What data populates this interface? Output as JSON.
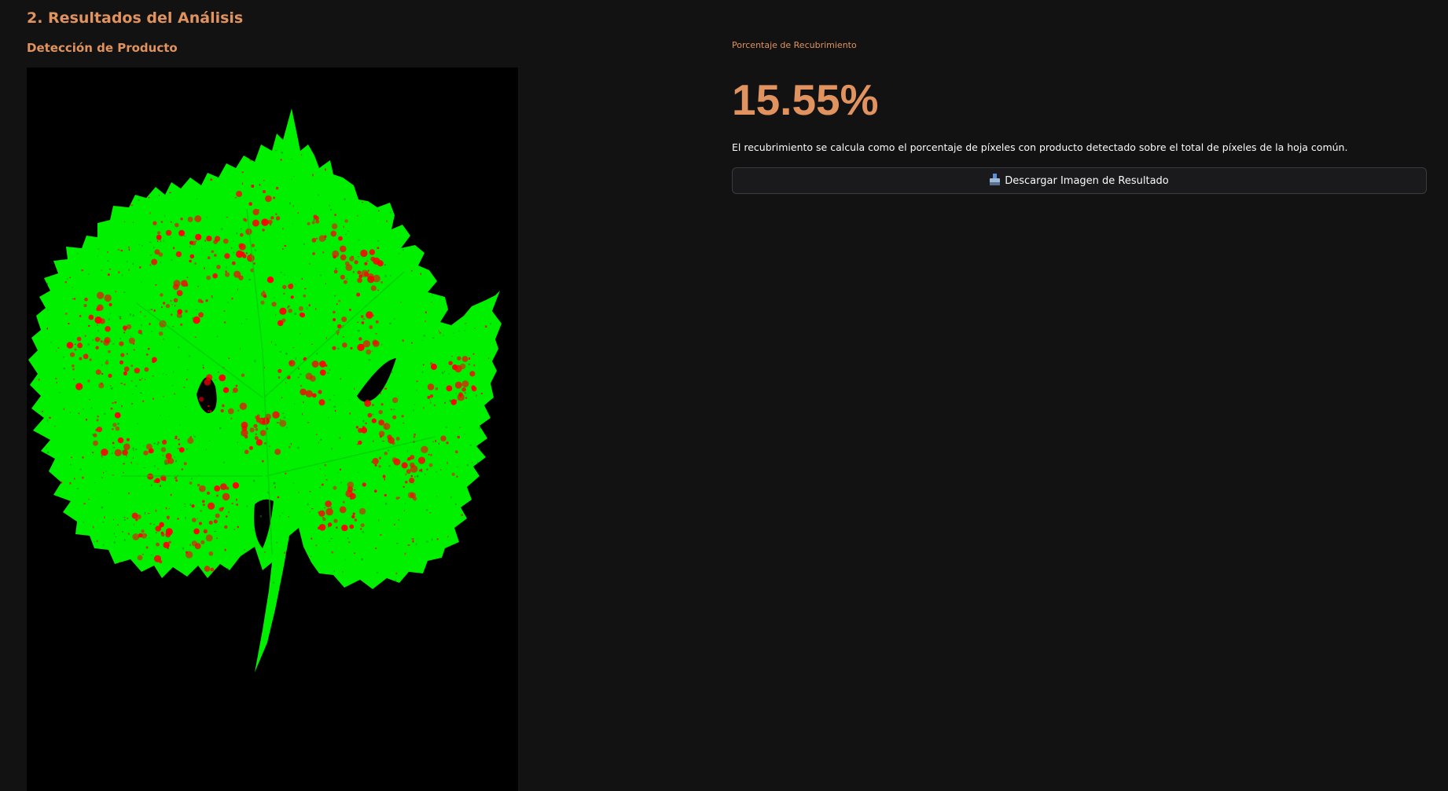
{
  "section": {
    "title": "2. Resultados del Análisis"
  },
  "detection": {
    "subtitle": "Detección de Producto",
    "image_icon": "leaf-detection-image",
    "colors": {
      "leaf": "#00ff00",
      "product": "#ff0000",
      "background": "#000000"
    }
  },
  "metric": {
    "label": "Porcentaje de Recubrimiento",
    "value": "15.55%"
  },
  "caption": "El recubrimiento se calcula como el porcentaje de píxeles con producto detectado sobre el total de píxeles de la hoja común.",
  "download": {
    "icon": "inbox-tray-icon",
    "label": "Descargar Imagen de Resultado"
  },
  "theme": {
    "background": "#121212",
    "accent": "#e0925f",
    "text": "#fafafa"
  }
}
